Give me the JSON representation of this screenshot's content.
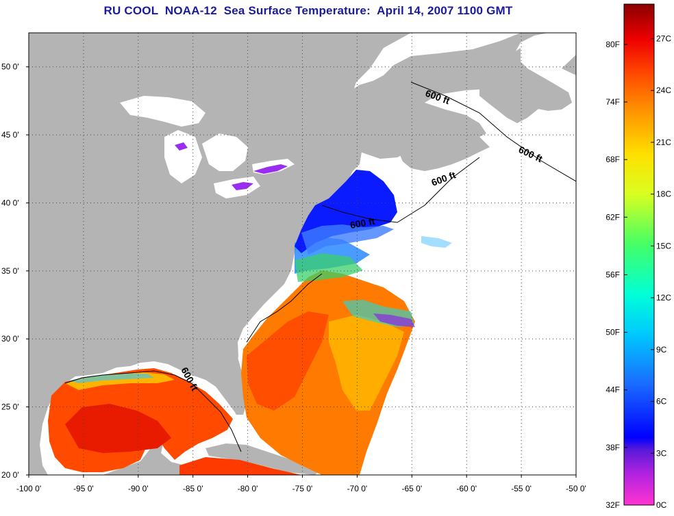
{
  "title": "RU COOL  NOAA-12  Sea Surface Temperature:  April 14, 2007 1100 GMT",
  "map": {
    "lon_range": [
      -100,
      -50
    ],
    "lat_range": [
      20,
      52.5
    ],
    "x_ticks": [
      {
        "value": -100,
        "label": "-100 0'"
      },
      {
        "value": -95,
        "label": "-95 0'"
      },
      {
        "value": -90,
        "label": "-90 0'"
      },
      {
        "value": -85,
        "label": "-85 0'"
      },
      {
        "value": -80,
        "label": "-80 0'"
      },
      {
        "value": -75,
        "label": "-75 0'"
      },
      {
        "value": -70,
        "label": "-70 0'"
      },
      {
        "value": -65,
        "label": "-65 0'"
      },
      {
        "value": -60,
        "label": "-60 0'"
      },
      {
        "value": -55,
        "label": "-55 0'"
      },
      {
        "value": -50,
        "label": "-50 0'"
      }
    ],
    "y_ticks": [
      {
        "value": 20,
        "label": "20 0'"
      },
      {
        "value": 25,
        "label": "25 0'"
      },
      {
        "value": 30,
        "label": "30 0'"
      },
      {
        "value": 35,
        "label": "35 0'"
      },
      {
        "value": 40,
        "label": "40 0'"
      },
      {
        "value": 45,
        "label": "45 0'"
      },
      {
        "value": 50,
        "label": "50 0'"
      }
    ],
    "grid": "dotted",
    "land_color": "#b4b4b4",
    "contour_labels": [
      "600 ft",
      "600 ft",
      "600 ft",
      "600 ft",
      "600 ft"
    ]
  },
  "colorbar": {
    "range_c": [
      0,
      29
    ],
    "celsius_labels": [
      "0C",
      "3C",
      "6C",
      "9C",
      "12C",
      "15C",
      "18C",
      "21C",
      "24C",
      "27C"
    ],
    "celsius_values": [
      0,
      3,
      6,
      9,
      12,
      15,
      18,
      21,
      24,
      27
    ],
    "fahrenheit_labels": [
      "32F",
      "38F",
      "44F",
      "50F",
      "56F",
      "62F",
      "68F",
      "74F",
      "80F"
    ],
    "fahrenheit_values": [
      32,
      38,
      44,
      50,
      56,
      62,
      68,
      74,
      80
    ]
  }
}
